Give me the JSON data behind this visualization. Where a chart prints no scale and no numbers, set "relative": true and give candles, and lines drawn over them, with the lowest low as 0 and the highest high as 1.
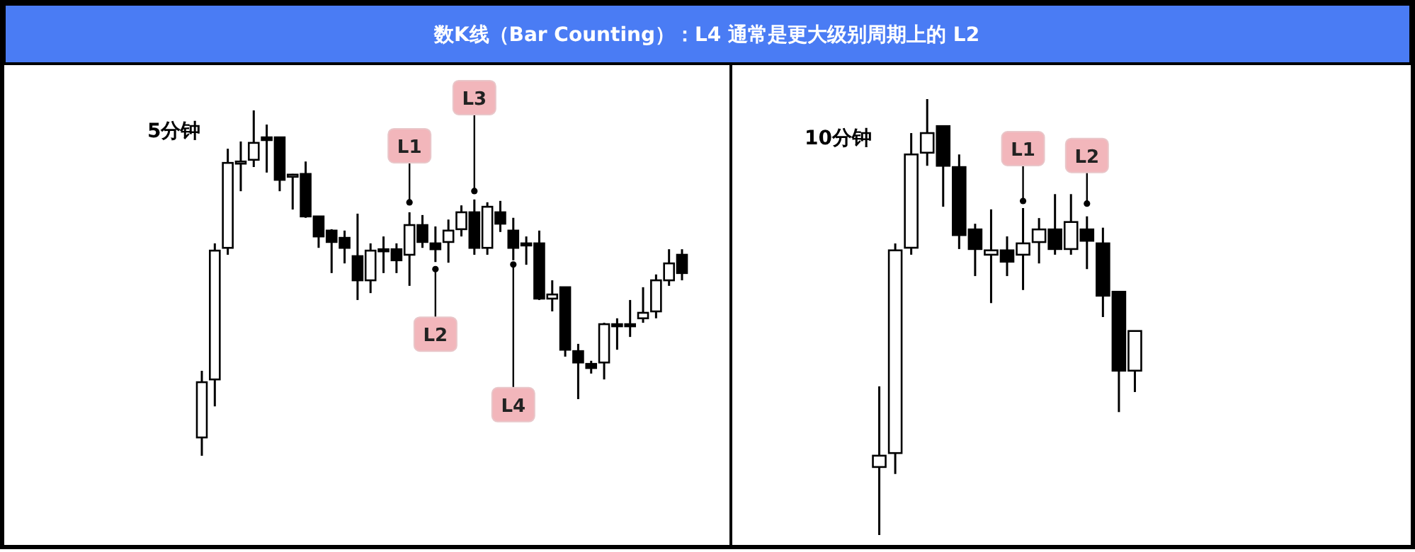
{
  "chart_data": [
    {
      "type": "candlestick",
      "title": "数K线（Bar Counting）：L4 通常是更大级别周期上的 L2",
      "subtitle": "5分钟",
      "relative": true,
      "categories": [
        null,
        null,
        null,
        null,
        null,
        null,
        null,
        null,
        null,
        null,
        null,
        null,
        null,
        null,
        null,
        null,
        null,
        null,
        null,
        null,
        null,
        null,
        null,
        null,
        null,
        null,
        null,
        null,
        null,
        null,
        null,
        null,
        null,
        null,
        null,
        null,
        null,
        null
      ],
      "ohlc": [
        [
          0.053,
          0.246,
          0,
          0.213
        ],
        [
          0.221,
          0.615,
          0.143,
          0.594
        ],
        [
          0.602,
          0.889,
          0.582,
          0.848
        ],
        [
          0.85,
          0.91,
          0.766,
          0.852
        ],
        [
          0.857,
          1,
          0.836,
          0.906
        ],
        [
          0.922,
          0.959,
          0.82,
          0.914
        ],
        [
          0.922,
          0.922,
          0.766,
          0.799
        ],
        [
          0.811,
          0.816,
          0.713,
          0.814
        ],
        [
          0.816,
          0.852,
          0.689,
          0.693
        ],
        [
          0.693,
          0.693,
          0.602,
          0.635
        ],
        [
          0.652,
          0.656,
          0.529,
          0.619
        ],
        [
          0.631,
          0.652,
          0.557,
          0.602
        ],
        [
          0.578,
          0.701,
          0.451,
          0.508
        ],
        [
          0.508,
          0.615,
          0.471,
          0.594
        ],
        [
          0.598,
          0.635,
          0.529,
          0.596
        ],
        [
          0.598,
          0.615,
          0.529,
          0.566
        ],
        [
          0.582,
          0.705,
          0.492,
          0.668
        ],
        [
          0.668,
          0.697,
          0.602,
          0.619
        ],
        [
          0.615,
          0.664,
          0.561,
          0.598
        ],
        [
          0.619,
          0.684,
          0.559,
          0.652
        ],
        [
          0.656,
          0.725,
          0.635,
          0.705
        ],
        [
          0.705,
          0.742,
          0.582,
          0.602
        ],
        [
          0.602,
          0.734,
          0.582,
          0.721
        ],
        [
          0.705,
          0.738,
          0.648,
          0.672
        ],
        [
          0.652,
          0.689,
          0.566,
          0.602
        ],
        [
          0.615,
          0.635,
          0.553,
          0.613
        ],
        [
          0.615,
          0.652,
          0.451,
          0.455
        ],
        [
          0.455,
          0.508,
          0.418,
          0.467
        ],
        [
          0.488,
          0.488,
          0.287,
          0.307
        ],
        [
          0.303,
          0.324,
          0.164,
          0.27
        ],
        [
          0.266,
          0.275,
          0.238,
          0.254
        ],
        [
          0.27,
          0.385,
          0.221,
          0.381
        ],
        [
          0.381,
          0.398,
          0.307,
          0.379
        ],
        [
          0.381,
          0.451,
          0.344,
          0.379
        ],
        [
          0.398,
          0.488,
          0.385,
          0.414
        ],
        [
          0.418,
          0.525,
          0.398,
          0.508
        ],
        [
          0.508,
          0.598,
          0.492,
          0.557
        ],
        [
          0.582,
          0.598,
          0.508,
          0.529
        ]
      ],
      "annotations": [
        {
          "text": "L1",
          "y": 0.705
        },
        {
          "text": "L2",
          "y": 0.561
        },
        {
          "text": "L3",
          "y": 0.742
        },
        {
          "text": "L4",
          "y": 0.566
        }
      ]
    },
    {
      "type": "candlestick",
      "subtitle": "10分钟",
      "relative": true,
      "categories": [
        null,
        null,
        null,
        null,
        null,
        null,
        null,
        null,
        null,
        null,
        null,
        null,
        null,
        null,
        null,
        null,
        null
      ],
      "ohlc": [
        [
          0.156,
          0.341,
          0,
          0.182
        ],
        [
          0.188,
          0.669,
          0.14,
          0.653
        ],
        [
          0.659,
          0.922,
          0.643,
          0.873
        ],
        [
          0.877,
          1,
          0.847,
          0.922
        ],
        [
          0.938,
          0.938,
          0.753,
          0.847
        ],
        [
          0.844,
          0.873,
          0.656,
          0.688
        ],
        [
          0.701,
          0.714,
          0.594,
          0.656
        ],
        [
          0.643,
          0.747,
          0.532,
          0.653
        ],
        [
          0.653,
          0.685,
          0.594,
          0.627
        ],
        [
          0.643,
          0.75,
          0.562,
          0.669
        ],
        [
          0.672,
          0.727,
          0.623,
          0.701
        ],
        [
          0.701,
          0.782,
          0.643,
          0.656
        ],
        [
          0.656,
          0.782,
          0.643,
          0.718
        ],
        [
          0.701,
          0.731,
          0.61,
          0.675
        ],
        [
          0.669,
          0.705,
          0.5,
          0.549
        ],
        [
          0.558,
          0.558,
          0.282,
          0.377
        ],
        [
          0.377,
          0.468,
          0.328,
          0.468
        ]
      ],
      "annotations": [
        {
          "text": "L1",
          "y": 0.75
        },
        {
          "text": "L2",
          "y": 0.731
        }
      ]
    }
  ]
}
